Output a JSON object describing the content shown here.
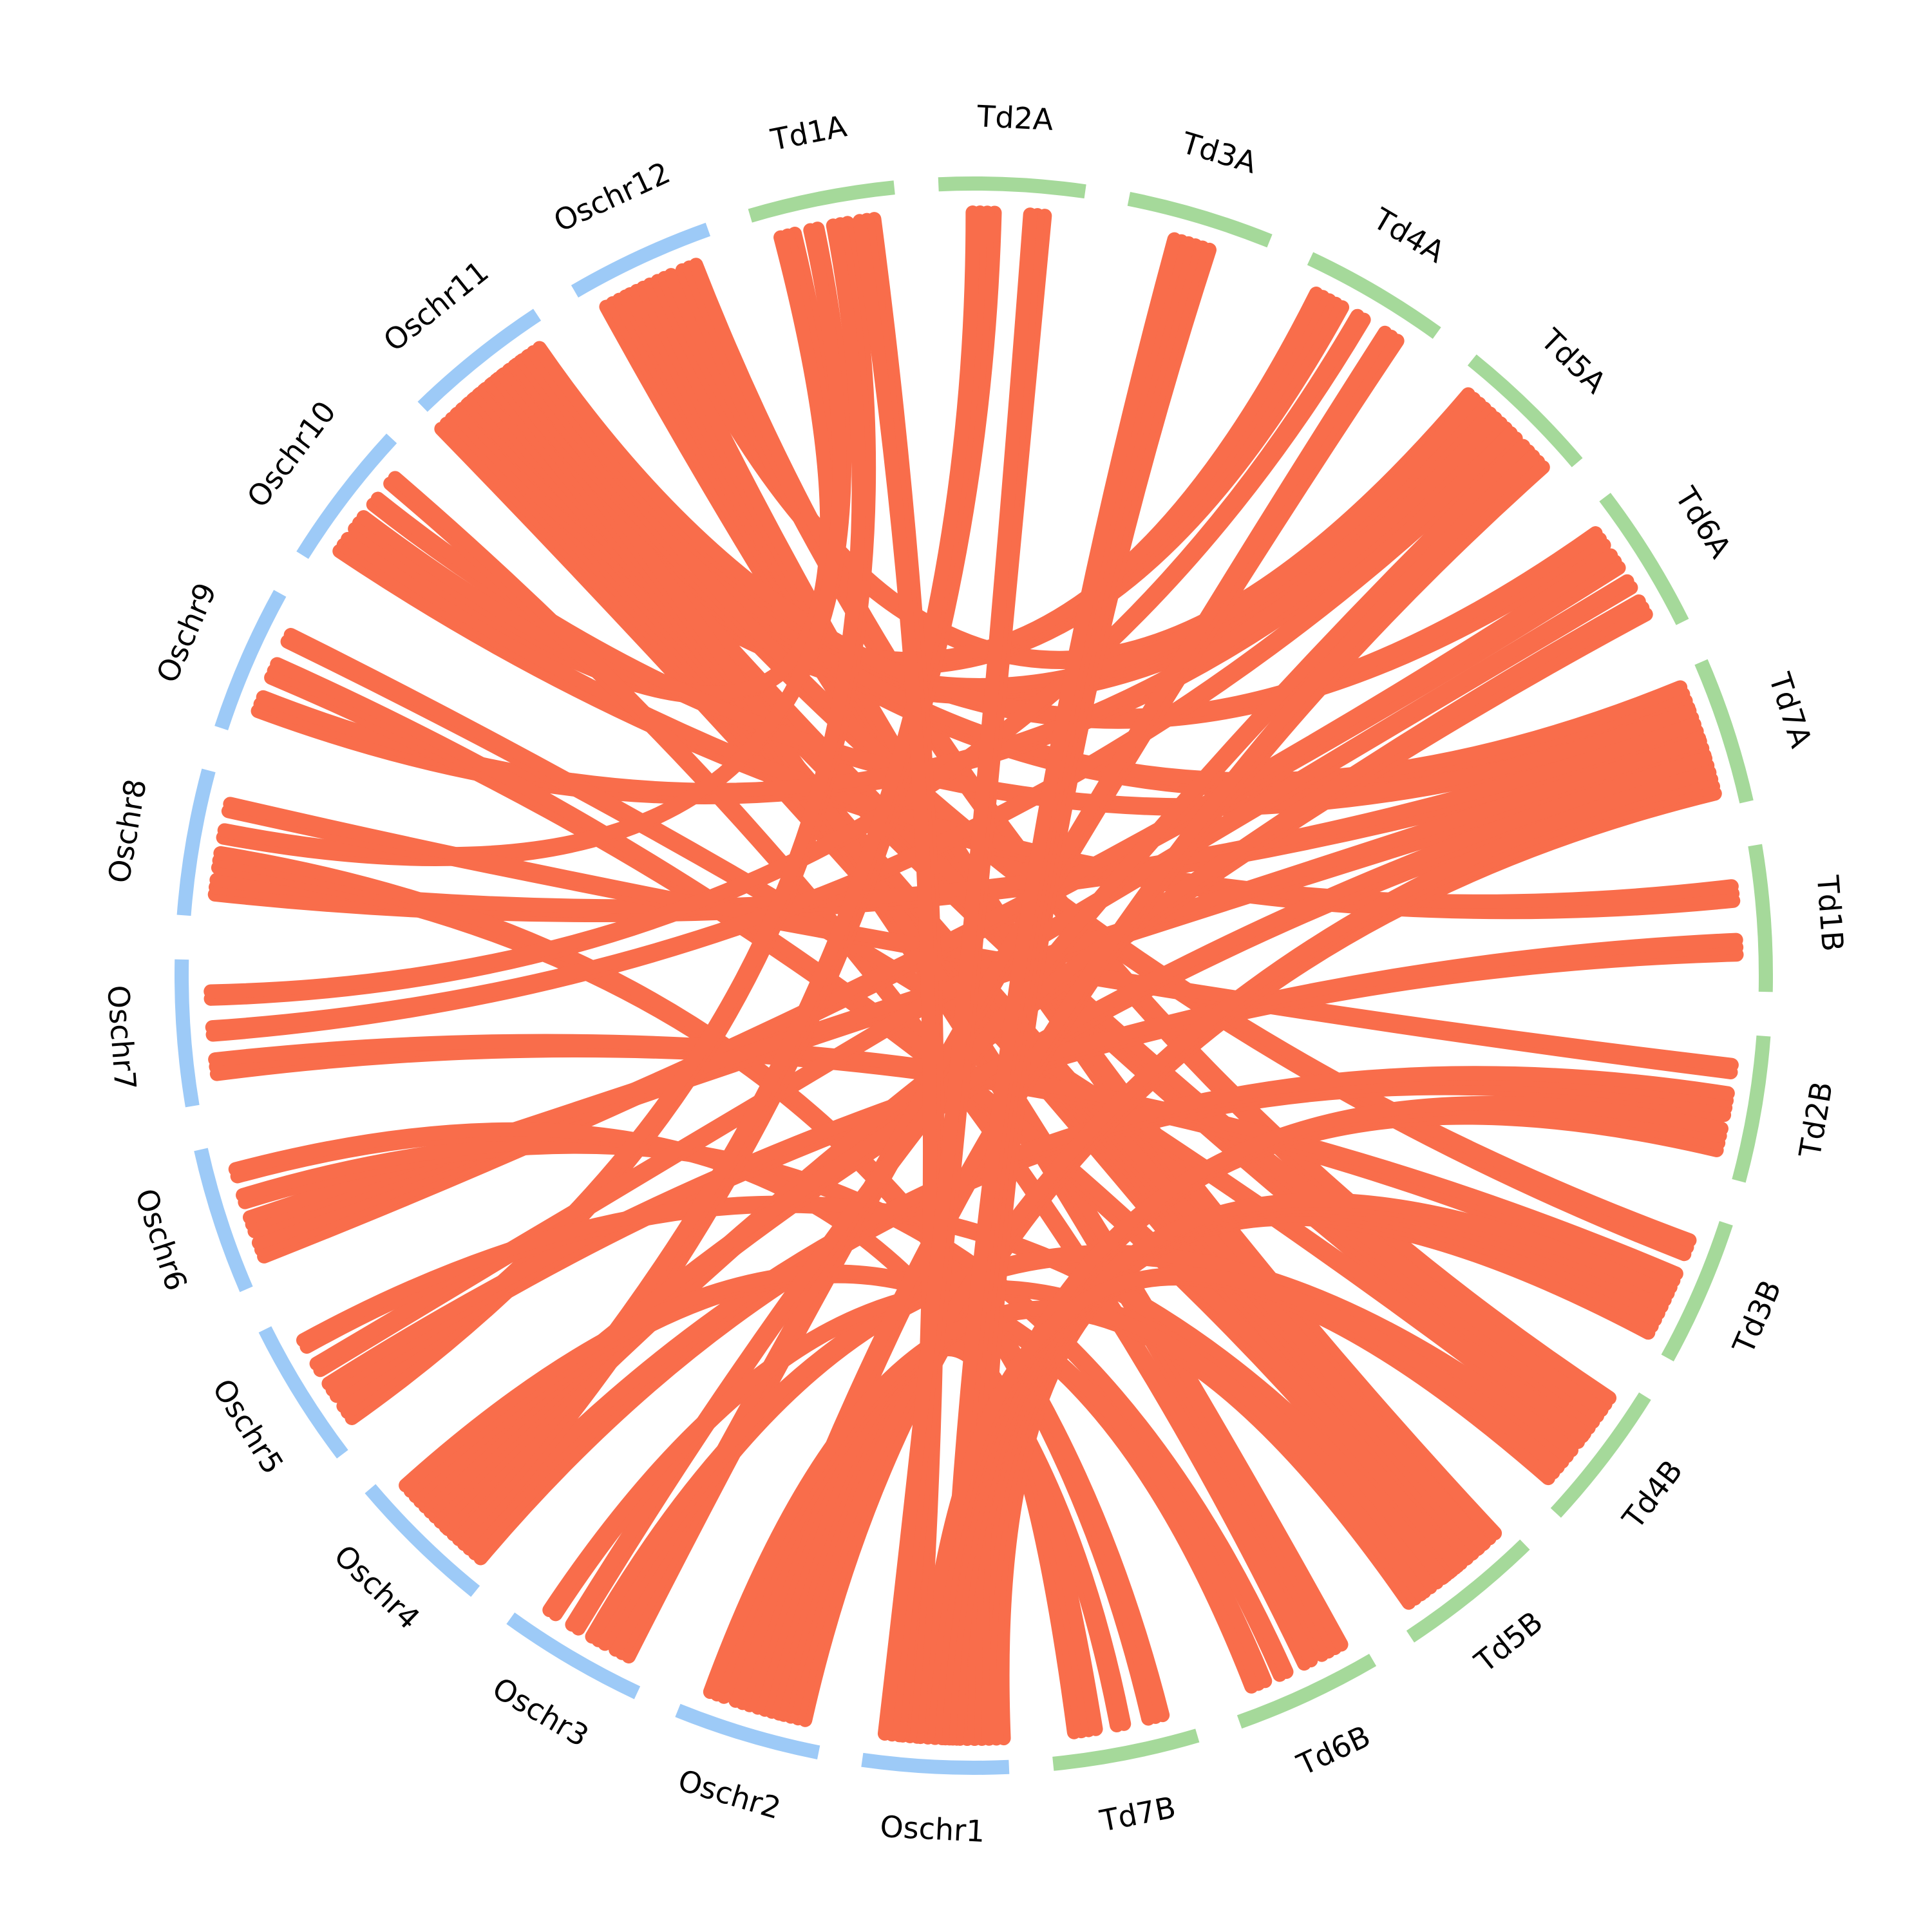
{
  "diagram": {
    "type": "circos-synteny",
    "colors": {
      "rice": "#9dcaf7",
      "wheat": "#a5d99a",
      "links": "#f96d4b",
      "label": "#000000"
    },
    "segments": [
      {
        "id": "Td1A",
        "label": "Td1A",
        "group": "wheat"
      },
      {
        "id": "Td2A",
        "label": "Td2A",
        "group": "wheat"
      },
      {
        "id": "Td3A",
        "label": "Td3A",
        "group": "wheat"
      },
      {
        "id": "Td4A",
        "label": "Td4A",
        "group": "wheat"
      },
      {
        "id": "Td5A",
        "label": "Td5A",
        "group": "wheat"
      },
      {
        "id": "Td6A",
        "label": "Td6A",
        "group": "wheat"
      },
      {
        "id": "Td7A",
        "label": "Td7A",
        "group": "wheat"
      },
      {
        "id": "Td1B",
        "label": "Td1B",
        "group": "wheat"
      },
      {
        "id": "Td2B",
        "label": "Td2B",
        "group": "wheat"
      },
      {
        "id": "Td3B",
        "label": "Td3B",
        "group": "wheat"
      },
      {
        "id": "Td4B",
        "label": "Td4B",
        "group": "wheat"
      },
      {
        "id": "Td5B",
        "label": "Td5B",
        "group": "wheat"
      },
      {
        "id": "Td6B",
        "label": "Td6B",
        "group": "wheat"
      },
      {
        "id": "Td7B",
        "label": "Td7B",
        "group": "wheat"
      },
      {
        "id": "Oschr1",
        "label": "Oschr1",
        "group": "rice"
      },
      {
        "id": "Oschr2",
        "label": "Oschr2",
        "group": "rice"
      },
      {
        "id": "Oschr3",
        "label": "Oschr3",
        "group": "rice"
      },
      {
        "id": "Oschr4",
        "label": "Oschr4",
        "group": "rice"
      },
      {
        "id": "Oschr5",
        "label": "Oschr5",
        "group": "rice"
      },
      {
        "id": "Oschr6",
        "label": "Oschr6",
        "group": "rice"
      },
      {
        "id": "Oschr7",
        "label": "Oschr7",
        "group": "rice"
      },
      {
        "id": "Oschr8",
        "label": "Oschr8",
        "group": "rice"
      },
      {
        "id": "Oschr9",
        "label": "Oschr9",
        "group": "rice"
      },
      {
        "id": "Oschr10",
        "label": "Oschr10",
        "group": "rice"
      },
      {
        "id": "Oschr11",
        "label": "Oschr11",
        "group": "rice"
      },
      {
        "id": "Oschr12",
        "label": "Oschr12",
        "group": "rice"
      }
    ],
    "links": [
      [
        "Oschr12",
        "Td5B",
        4
      ],
      [
        "Oschr12",
        "Td5B",
        4
      ],
      [
        "Oschr12",
        "Td5A",
        3
      ],
      [
        "Oschr12",
        "Td4B",
        3
      ],
      [
        "Oschr11",
        "Td5B",
        8
      ],
      [
        "Oschr11",
        "Td5A",
        6
      ],
      [
        "Oschr11",
        "Td4A",
        5
      ],
      [
        "Oschr11",
        "Td4B",
        5
      ],
      [
        "Oschr11",
        "Td6B",
        4
      ],
      [
        "Oschr11",
        "Td7A",
        4
      ],
      [
        "Oschr11",
        "Td3B",
        3
      ],
      [
        "Oschr11",
        "Td6A",
        3
      ],
      [
        "Oschr10",
        "Td1B",
        3
      ],
      [
        "Oschr10",
        "Td1A",
        3
      ],
      [
        "Oschr10",
        "Td7A",
        2
      ],
      [
        "Oschr10",
        "Td6B",
        2
      ],
      [
        "Oschr9",
        "Td5A",
        3
      ],
      [
        "Oschr9",
        "Td5B",
        3
      ],
      [
        "Oschr9",
        "Td4B",
        2
      ],
      [
        "Oschr8",
        "Td7A",
        3
      ],
      [
        "Oschr8",
        "Td7B",
        3
      ],
      [
        "Oschr8",
        "Td1A",
        2
      ],
      [
        "Oschr8",
        "Td2B",
        2
      ],
      [
        "Oschr7",
        "Td3B",
        3
      ],
      [
        "Oschr7",
        "Td5A",
        2
      ],
      [
        "Oschr7",
        "Td4A",
        2
      ],
      [
        "Oschr6",
        "Td6A",
        3
      ],
      [
        "Oschr6",
        "Td7A",
        3
      ],
      [
        "Oschr6",
        "Td6B",
        2
      ],
      [
        "Oschr6",
        "Td7B",
        2
      ],
      [
        "Oschr5",
        "Td1A",
        3
      ],
      [
        "Oschr5",
        "Td1B",
        3
      ],
      [
        "Oschr5",
        "Td6A",
        2
      ],
      [
        "Oschr5",
        "Td5B",
        2
      ],
      [
        "Oschr4",
        "Td2B",
        4
      ],
      [
        "Oschr4",
        "Td2A",
        4
      ],
      [
        "Oschr4",
        "Td6A",
        3
      ],
      [
        "Oschr4",
        "Td7A",
        3
      ],
      [
        "Oschr4",
        "Td6B",
        3
      ],
      [
        "Oschr3",
        "Td4A",
        3
      ],
      [
        "Oschr3",
        "Td4B",
        3
      ],
      [
        "Oschr3",
        "Td5A",
        2
      ],
      [
        "Oschr3",
        "Td5B",
        2
      ],
      [
        "Oschr2",
        "Td7A",
        4
      ],
      [
        "Oschr2",
        "Td7B",
        4
      ],
      [
        "Oschr2",
        "Td5A",
        3
      ],
      [
        "Oschr2",
        "Td5B",
        3
      ],
      [
        "Oschr1",
        "Td3B",
        7
      ],
      [
        "Oschr1",
        "Td3A",
        6
      ],
      [
        "Oschr1",
        "Td2B",
        4
      ],
      [
        "Oschr1",
        "Td4B",
        3
      ],
      [
        "Oschr1",
        "Td1A",
        3
      ],
      [
        "Oschr1",
        "Td2A",
        3
      ]
    ]
  }
}
